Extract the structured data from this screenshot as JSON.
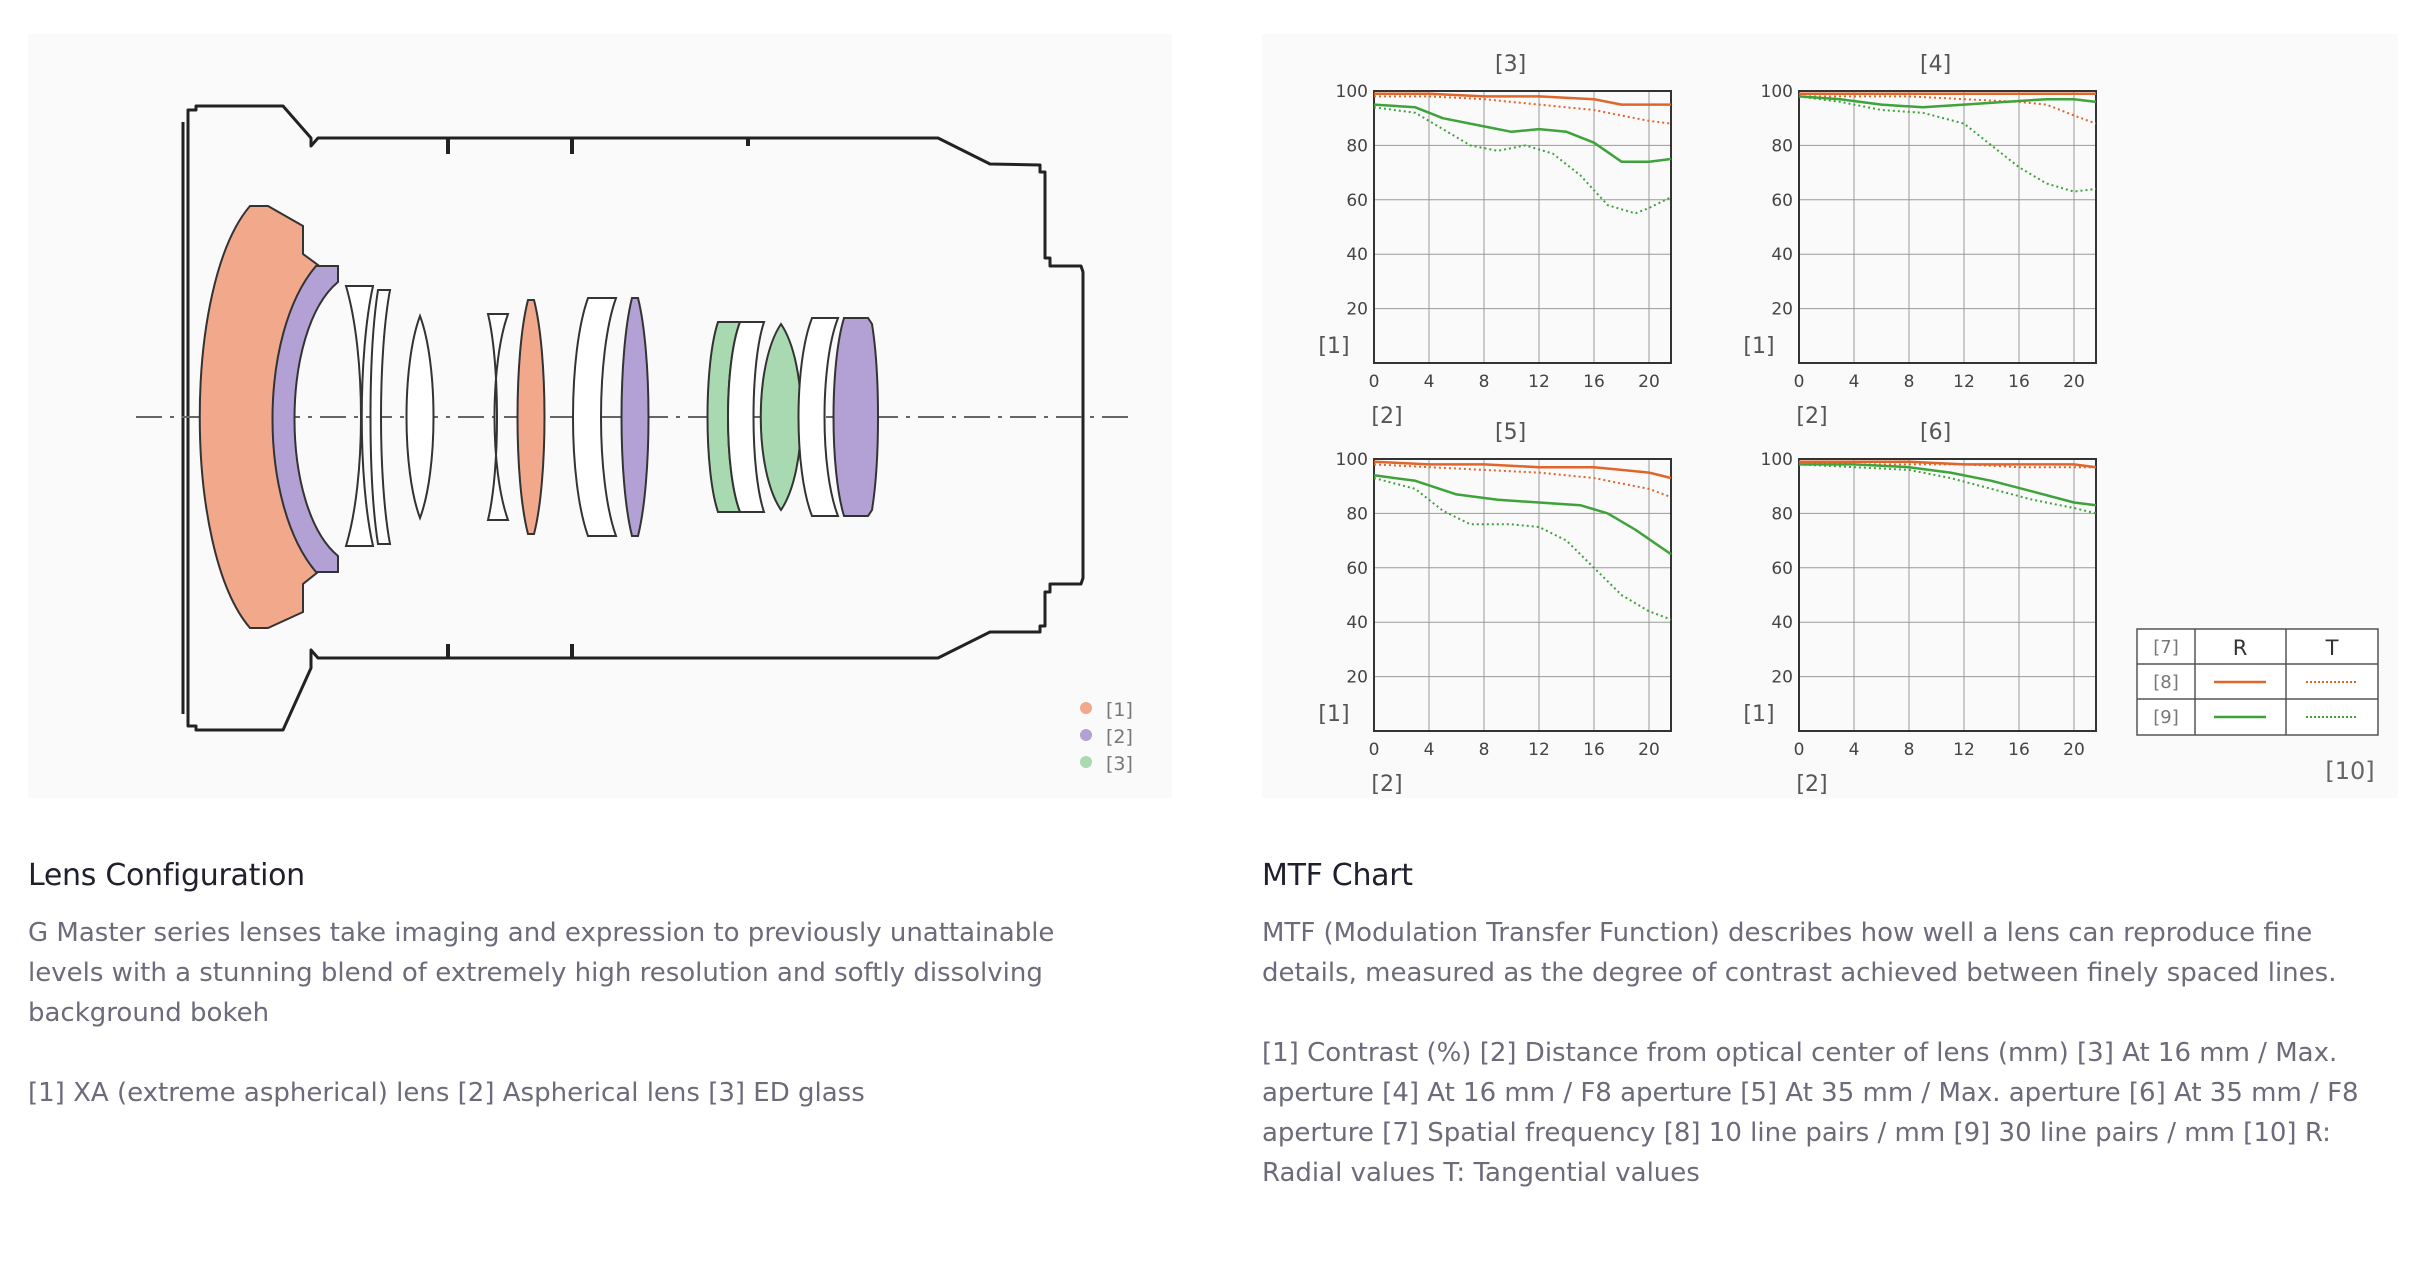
{
  "lens_config": {
    "title": "Lens Configuration",
    "description": "G Master series lenses take imaging and expression to previously unattainable levels with a stunning blend of extremely high resolution and softly dissolving background bokeh",
    "legend_text": "[1] XA (extreme aspherical) lens [2] Aspherical lens [3] ED glass",
    "legend": [
      {
        "label": "[1]",
        "color": "#f2a88a"
      },
      {
        "label": "[2]",
        "color": "#b3a0d4"
      },
      {
        "label": "[3]",
        "color": "#a9d9b0"
      }
    ]
  },
  "mtf": {
    "title": "MTF Chart",
    "description": "MTF (Modulation Transfer Function) describes how well a lens can reproduce fine details, measured as the degree of contrast achieved between finely spaced lines.",
    "legend_text": "[1] Contrast (%) [2] Distance from optical center of lens (mm) [3] At 16 mm / Max. aperture [4] At 16 mm / F8 aperture [5] At 35 mm / Max. aperture [6] At 35 mm / F8 aperture [7] Spatial frequency [8] 10 line pairs / mm [9] 30 line pairs / mm [10] R: Radial values T: Tangential values",
    "y_label": "[1]",
    "x_label": "[2]",
    "legend_table": {
      "header": "[7]",
      "r": "R",
      "t": "T",
      "row1": "[8]",
      "row2": "[9]",
      "note": "[10]"
    },
    "colors": {
      "lp10": "#e0652a",
      "lp30": "#3ea33a"
    }
  },
  "chart_data": [
    {
      "type": "line",
      "title": "[3]",
      "xlim": [
        0,
        21.6
      ],
      "ylim": [
        0,
        100
      ],
      "x_ticks": [
        0,
        4,
        8,
        12,
        16,
        20
      ],
      "y_ticks": [
        20,
        40,
        60,
        80,
        100
      ],
      "grid": true,
      "series": [
        {
          "key": "lp10_R",
          "points": [
            [
              0,
              99
            ],
            [
              4,
              99
            ],
            [
              8,
              98
            ],
            [
              12,
              98
            ],
            [
              16,
              97
            ],
            [
              18,
              95
            ],
            [
              20,
              95
            ],
            [
              21.6,
              95
            ]
          ]
        },
        {
          "key": "lp10_T",
          "points": [
            [
              0,
              98
            ],
            [
              4,
              98
            ],
            [
              8,
              97
            ],
            [
              12,
              95
            ],
            [
              16,
              93
            ],
            [
              18,
              91
            ],
            [
              20,
              89
            ],
            [
              21.6,
              88
            ]
          ]
        },
        {
          "key": "lp30_R",
          "points": [
            [
              0,
              95
            ],
            [
              3,
              94
            ],
            [
              5,
              90
            ],
            [
              8,
              87
            ],
            [
              10,
              85
            ],
            [
              12,
              86
            ],
            [
              14,
              85
            ],
            [
              16,
              81
            ],
            [
              18,
              74
            ],
            [
              20,
              74
            ],
            [
              21.6,
              75
            ]
          ]
        },
        {
          "key": "lp30_T",
          "points": [
            [
              0,
              94
            ],
            [
              3,
              92
            ],
            [
              5,
              86
            ],
            [
              7,
              80
            ],
            [
              9,
              78
            ],
            [
              11,
              80
            ],
            [
              13,
              77
            ],
            [
              15,
              69
            ],
            [
              17,
              58
            ],
            [
              19,
              55
            ],
            [
              20,
              57
            ],
            [
              21.6,
              61
            ]
          ]
        }
      ]
    },
    {
      "type": "line",
      "title": "[4]",
      "xlim": [
        0,
        21.6
      ],
      "ylim": [
        0,
        100
      ],
      "x_ticks": [
        0,
        4,
        8,
        12,
        16,
        20
      ],
      "y_ticks": [
        20,
        40,
        60,
        80,
        100
      ],
      "grid": true,
      "series": [
        {
          "key": "lp10_R",
          "points": [
            [
              0,
              99
            ],
            [
              4,
              99
            ],
            [
              8,
              99
            ],
            [
              12,
              99
            ],
            [
              16,
              99
            ],
            [
              18,
              99
            ],
            [
              20,
              99
            ],
            [
              21.6,
              99
            ]
          ]
        },
        {
          "key": "lp10_T",
          "points": [
            [
              0,
              98
            ],
            [
              4,
              98
            ],
            [
              8,
              98
            ],
            [
              12,
              97
            ],
            [
              16,
              96
            ],
            [
              18,
              95
            ],
            [
              20,
              91
            ],
            [
              21.6,
              88
            ]
          ]
        },
        {
          "key": "lp30_R",
          "points": [
            [
              0,
              98
            ],
            [
              3,
              97
            ],
            [
              6,
              95
            ],
            [
              9,
              94
            ],
            [
              12,
              95
            ],
            [
              15,
              96
            ],
            [
              18,
              97
            ],
            [
              20,
              97
            ],
            [
              21.6,
              96
            ]
          ]
        },
        {
          "key": "lp30_T",
          "points": [
            [
              0,
              98
            ],
            [
              3,
              96
            ],
            [
              6,
              93
            ],
            [
              9,
              92
            ],
            [
              12,
              88
            ],
            [
              14,
              80
            ],
            [
              16,
              72
            ],
            [
              18,
              66
            ],
            [
              20,
              63
            ],
            [
              21.6,
              64
            ]
          ]
        }
      ]
    },
    {
      "type": "line",
      "title": "[5]",
      "xlim": [
        0,
        21.6
      ],
      "ylim": [
        0,
        100
      ],
      "x_ticks": [
        0,
        4,
        8,
        12,
        16,
        20
      ],
      "y_ticks": [
        20,
        40,
        60,
        80,
        100
      ],
      "grid": true,
      "series": [
        {
          "key": "lp10_R",
          "points": [
            [
              0,
              99
            ],
            [
              4,
              98
            ],
            [
              8,
              98
            ],
            [
              12,
              97
            ],
            [
              16,
              97
            ],
            [
              18,
              96
            ],
            [
              20,
              95
            ],
            [
              21.6,
              93
            ]
          ]
        },
        {
          "key": "lp10_T",
          "points": [
            [
              0,
              98
            ],
            [
              4,
              97
            ],
            [
              8,
              96
            ],
            [
              12,
              95
            ],
            [
              16,
              93
            ],
            [
              18,
              91
            ],
            [
              20,
              89
            ],
            [
              21.6,
              86
            ]
          ]
        },
        {
          "key": "lp30_R",
          "points": [
            [
              0,
              94
            ],
            [
              3,
              92
            ],
            [
              6,
              87
            ],
            [
              9,
              85
            ],
            [
              12,
              84
            ],
            [
              15,
              83
            ],
            [
              17,
              80
            ],
            [
              19,
              74
            ],
            [
              21.6,
              65
            ]
          ]
        },
        {
          "key": "lp30_T",
          "points": [
            [
              0,
              93
            ],
            [
              3,
              89
            ],
            [
              5,
              81
            ],
            [
              7,
              76
            ],
            [
              10,
              76
            ],
            [
              12,
              75
            ],
            [
              14,
              70
            ],
            [
              16,
              60
            ],
            [
              18,
              50
            ],
            [
              20,
              44
            ],
            [
              21.6,
              41
            ]
          ]
        }
      ]
    },
    {
      "type": "line",
      "title": "[6]",
      "xlim": [
        0,
        21.6
      ],
      "ylim": [
        0,
        100
      ],
      "x_ticks": [
        0,
        4,
        8,
        12,
        16,
        20
      ],
      "y_ticks": [
        20,
        40,
        60,
        80,
        100
      ],
      "grid": true,
      "series": [
        {
          "key": "lp10_R",
          "points": [
            [
              0,
              99
            ],
            [
              4,
              99
            ],
            [
              8,
              99
            ],
            [
              12,
              98
            ],
            [
              16,
              98
            ],
            [
              18,
              98
            ],
            [
              20,
              98
            ],
            [
              21.6,
              97
            ]
          ]
        },
        {
          "key": "lp10_T",
          "points": [
            [
              0,
              99
            ],
            [
              4,
              98
            ],
            [
              8,
              98
            ],
            [
              12,
              98
            ],
            [
              16,
              97
            ],
            [
              18,
              97
            ],
            [
              20,
              97
            ],
            [
              21.6,
              97
            ]
          ]
        },
        {
          "key": "lp30_R",
          "points": [
            [
              0,
              98
            ],
            [
              4,
              98
            ],
            [
              8,
              97
            ],
            [
              11,
              95
            ],
            [
              14,
              92
            ],
            [
              17,
              88
            ],
            [
              20,
              84
            ],
            [
              21.6,
              83
            ]
          ]
        },
        {
          "key": "lp30_T",
          "points": [
            [
              0,
              98
            ],
            [
              4,
              97
            ],
            [
              8,
              96
            ],
            [
              11,
              93
            ],
            [
              14,
              89
            ],
            [
              17,
              85
            ],
            [
              20,
              82
            ],
            [
              21.6,
              80
            ]
          ]
        }
      ]
    }
  ]
}
